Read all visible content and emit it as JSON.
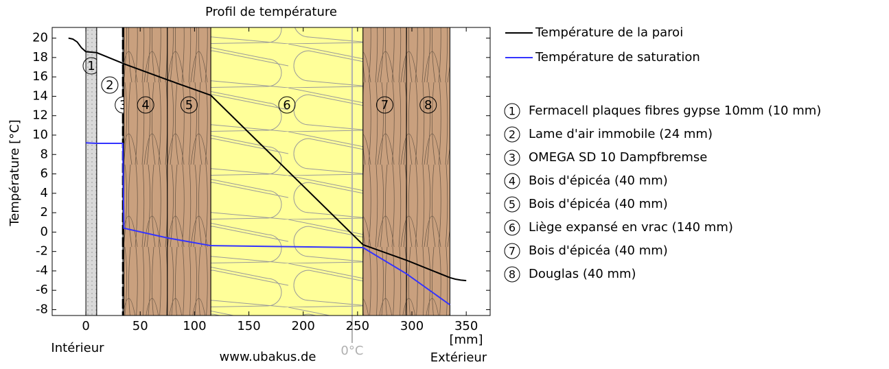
{
  "chart_data": {
    "type": "line",
    "title": "Profil de température",
    "y_label": "Température [°C]",
    "x_unit": "[mm]",
    "inside_label": "Intérieur",
    "outside_label": "Extérieur",
    "source": "www.ubakus.de",
    "zero_line": {
      "x": 245,
      "label": "0°C",
      "color": "#b0b0b0"
    },
    "xlim": [
      -31,
      372
    ],
    "ylim": [
      -8.6,
      21.1
    ],
    "xticks": [
      0,
      50,
      100,
      150,
      200,
      250,
      300,
      350
    ],
    "yticks": [
      20,
      18,
      16,
      14,
      12,
      10,
      8,
      6,
      4,
      2,
      0,
      -2,
      -4,
      -6,
      -8
    ],
    "series": [
      {
        "name": "Température de la paroi",
        "color": "#000000",
        "x": [
          -16,
          -12,
          -8,
          -4,
          0,
          10,
          34,
          35,
          75,
          115,
          255,
          295,
          335,
          340,
          345,
          350
        ],
        "values": [
          20,
          19.9,
          19.6,
          19.0,
          18.6,
          18.5,
          17.4,
          17.35,
          15.7,
          14.1,
          -1.3,
          -2.9,
          -4.7,
          -4.85,
          -4.95,
          -5.0
        ]
      },
      {
        "name": "Température de saturation",
        "color": "#3333ff",
        "x": [
          0,
          10,
          34,
          35,
          75,
          115,
          255,
          295,
          335
        ],
        "values": [
          9.2,
          9.15,
          9.15,
          0.4,
          -0.6,
          -1.4,
          -1.6,
          -4.3,
          -7.5
        ]
      }
    ],
    "layers": [
      {
        "label": "1",
        "name": "Fermacell plaques fibres gypse  10mm (10 mm)",
        "start": 0,
        "end": 10,
        "fill": "#d9d9d9"
      },
      {
        "label": "2",
        "name": "Lame d'air immobile (24 mm)",
        "start": 10,
        "end": 34,
        "fill": "#ffffff"
      },
      {
        "label": "3",
        "name": "OMEGA SD 10 Dampfbremse",
        "start": 34,
        "end": 35,
        "fill": "#000000"
      },
      {
        "label": "4",
        "name": "Bois d'épicéa (40 mm)",
        "start": 35,
        "end": 75,
        "fill": "#c9a07e"
      },
      {
        "label": "5",
        "name": "Bois d'épicéa (40 mm)",
        "start": 75,
        "end": 115,
        "fill": "#c9a07e"
      },
      {
        "label": "6",
        "name": "Liège expansé en vrac (140 mm)",
        "start": 115,
        "end": 255,
        "fill": "#ffff99"
      },
      {
        "label": "7",
        "name": "Bois d'épicéa (40 mm)",
        "start": 255,
        "end": 295,
        "fill": "#c9a07e"
      },
      {
        "label": "8",
        "name": "Douglas (40 mm)",
        "start": 295,
        "end": 335,
        "fill": "#c9a07e"
      }
    ]
  }
}
